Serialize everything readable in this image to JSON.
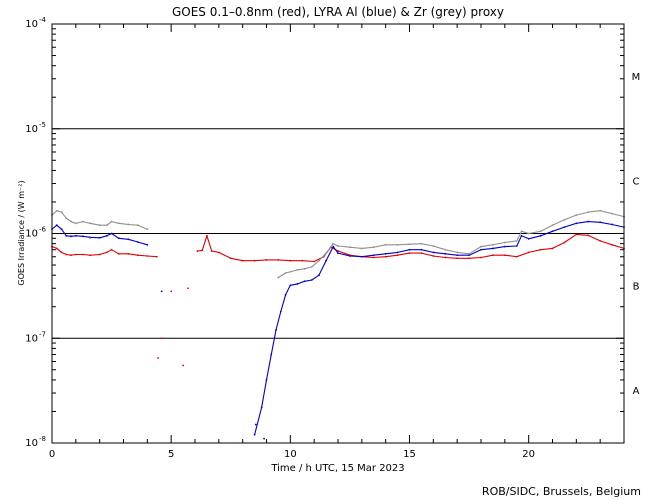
{
  "chart_data": {
    "type": "line",
    "title": "GOES 0.1–0.8nm (red), LYRA Al (blue) & Zr (grey) proxy",
    "xlabel": "Time / h UTC, 15 Mar 2023",
    "ylabel": "GOES Irradiance / (W m⁻²)",
    "xlim": [
      0,
      24
    ],
    "ylim": [
      1e-08,
      0.0001
    ],
    "yscale": "log",
    "x_ticks": [
      "0",
      "5",
      "10",
      "15",
      "20"
    ],
    "y_ticks": [
      {
        "base": "10",
        "exp": "-4",
        "value": 0.0001
      },
      {
        "base": "10",
        "exp": "-5",
        "value": 1e-05
      },
      {
        "base": "10",
        "exp": "-6",
        "value": 1e-06
      },
      {
        "base": "10",
        "exp": "-7",
        "value": 1e-07
      },
      {
        "base": "10",
        "exp": "-8",
        "value": 1e-08
      }
    ],
    "flare_class_lines": [
      1e-05,
      1e-06,
      1e-07
    ],
    "class_labels": [
      {
        "label": "M",
        "value": 3.2e-05
      },
      {
        "label": "C",
        "value": 3.2e-06
      },
      {
        "label": "B",
        "value": 3.2e-07
      },
      {
        "label": "A",
        "value": 3.2e-08
      }
    ],
    "series": [
      {
        "color": "#e00000",
        "x": [
          0.0,
          0.2,
          0.4,
          0.6,
          0.8,
          1.0,
          1.3,
          1.6,
          2.0,
          2.3,
          2.5,
          2.8,
          3.2,
          3.6,
          4.0,
          4.4,
          6.1,
          6.3,
          6.5,
          6.7,
          7.0,
          7.5,
          8.0,
          8.5,
          9.0,
          9.5,
          10.0,
          10.5,
          11.0,
          11.4,
          11.7,
          12.0,
          12.5,
          13.0,
          13.5,
          14.0,
          14.5,
          15.0,
          15.5,
          16.0,
          16.5,
          17.0,
          17.5,
          18.0,
          18.5,
          19.0,
          19.5,
          20.0,
          20.5,
          21.0,
          21.5,
          22.0,
          22.5,
          23.0,
          23.5,
          24.0
        ],
        "y": [
          7.5e-07,
          7.2e-07,
          6.6e-07,
          6.3e-07,
          6.2e-07,
          6.3e-07,
          6.3e-07,
          6.2e-07,
          6.3e-07,
          6.6e-07,
          7e-07,
          6.4e-07,
          6.4e-07,
          6.2e-07,
          6.1e-07,
          6e-07,
          6.8e-07,
          6.9e-07,
          9.5e-07,
          6.8e-07,
          6.6e-07,
          5.8e-07,
          5.5e-07,
          5.5e-07,
          5.6e-07,
          5.6e-07,
          5.5e-07,
          5.5e-07,
          5.4e-07,
          6e-07,
          7.4e-07,
          6.8e-07,
          6.2e-07,
          6e-07,
          5.9e-07,
          6e-07,
          6.2e-07,
          6.5e-07,
          6.5e-07,
          6.1e-07,
          5.9e-07,
          5.8e-07,
          5.8e-07,
          5.9e-07,
          6.2e-07,
          6.2e-07,
          6e-07,
          6.6e-07,
          7e-07,
          7.2e-07,
          8.2e-07,
          9.8e-07,
          9.6e-07,
          8.5e-07,
          7.8e-07,
          7.2e-07
        ]
      },
      {
        "color": "#0000cc",
        "x": [
          0.0,
          0.2,
          0.4,
          0.6,
          0.8,
          1.0,
          1.3,
          1.6,
          2.0,
          2.3,
          2.5,
          2.8,
          3.2,
          3.6,
          4.0,
          8.5,
          8.8,
          9.0,
          9.2,
          9.4,
          9.6,
          9.8,
          10.0,
          10.3,
          10.6,
          10.9,
          11.2,
          11.5,
          11.8,
          12.0,
          12.5,
          13.0,
          13.5,
          14.0,
          14.5,
          15.0,
          15.5,
          16.0,
          16.5,
          17.0,
          17.5,
          18.0,
          18.5,
          19.0,
          19.5,
          19.7,
          20.0,
          20.5,
          21.0,
          21.5,
          22.0,
          22.5,
          23.0,
          23.5,
          24.0
        ],
        "y": [
          1.1e-06,
          1.2e-06,
          1.1e-06,
          9.5e-07,
          9.4e-07,
          9.5e-07,
          9.4e-07,
          9.2e-07,
          9.1e-07,
          9.5e-07,
          1e-06,
          9e-07,
          8.8e-07,
          8.3e-07,
          7.8e-07,
          1.2e-08,
          2.2e-08,
          4e-08,
          7e-08,
          1.2e-07,
          1.8e-07,
          2.6e-07,
          3.2e-07,
          3.3e-07,
          3.5e-07,
          3.6e-07,
          4e-07,
          5.5e-07,
          7.5e-07,
          6.5e-07,
          6.1e-07,
          6e-07,
          6.2e-07,
          6.4e-07,
          6.6e-07,
          7e-07,
          7e-07,
          6.6e-07,
          6.4e-07,
          6.2e-07,
          6.2e-07,
          7e-07,
          7.2e-07,
          7.5e-07,
          7.6e-07,
          9.5e-07,
          8.9e-07,
          9.5e-07,
          1.05e-06,
          1.15e-06,
          1.25e-06,
          1.3e-06,
          1.28e-06,
          1.22e-06,
          1.15e-06
        ]
      },
      {
        "color": "#909090",
        "x": [
          0.0,
          0.2,
          0.4,
          0.6,
          0.8,
          1.0,
          1.3,
          1.6,
          2.0,
          2.3,
          2.5,
          2.8,
          3.2,
          3.6,
          4.0,
          9.5,
          9.8,
          10.0,
          10.3,
          10.6,
          10.9,
          11.2,
          11.5,
          11.8,
          12.0,
          12.5,
          13.0,
          13.5,
          14.0,
          14.5,
          15.0,
          15.5,
          16.0,
          16.5,
          17.0,
          17.5,
          18.0,
          18.5,
          19.0,
          19.5,
          19.7,
          20.0,
          20.5,
          21.0,
          21.5,
          22.0,
          22.5,
          23.0,
          23.5,
          24.0
        ],
        "y": [
          1.5e-06,
          1.65e-06,
          1.6e-06,
          1.4e-06,
          1.3e-06,
          1.25e-06,
          1.3e-06,
          1.25e-06,
          1.2e-06,
          1.2e-06,
          1.3e-06,
          1.25e-06,
          1.22e-06,
          1.2e-06,
          1.1e-06,
          3.8e-07,
          4.2e-07,
          4.3e-07,
          4.5e-07,
          4.6e-07,
          4.8e-07,
          5.5e-07,
          6.5e-07,
          8e-07,
          7.6e-07,
          7.4e-07,
          7.2e-07,
          7.4e-07,
          7.8e-07,
          7.8e-07,
          7.9e-07,
          8e-07,
          7.6e-07,
          7e-07,
          6.6e-07,
          6.4e-07,
          7.5e-07,
          7.8e-07,
          8.2e-07,
          8.5e-07,
          1.05e-06,
          1e-06,
          1.05e-06,
          1.2e-06,
          1.35e-06,
          1.5e-06,
          1.6e-06,
          1.65e-06,
          1.55e-06,
          1.45e-06
        ]
      }
    ],
    "isolated_points": [
      {
        "color": "#e00000",
        "x": 4.55,
        "y": 1e-07
      },
      {
        "color": "#e00000",
        "x": 4.45,
        "y": 6.5e-08
      },
      {
        "color": "#e00000",
        "x": 5.0,
        "y": 2.8e-07
      },
      {
        "color": "#e00000",
        "x": 5.5,
        "y": 5.5e-08
      },
      {
        "color": "#e00000",
        "x": 5.7,
        "y": 3e-07
      },
      {
        "color": "#0000cc",
        "x": 4.6,
        "y": 2.8e-07
      },
      {
        "color": "#0000cc",
        "x": 8.55,
        "y": 1.5e-08
      },
      {
        "color": "#0000cc",
        "x": 8.9,
        "y": 1.1e-08
      },
      {
        "color": "#909090",
        "x": 1.6,
        "y": 9e-07
      }
    ]
  },
  "credit": "ROB/SIDC, Brussels, Belgium"
}
